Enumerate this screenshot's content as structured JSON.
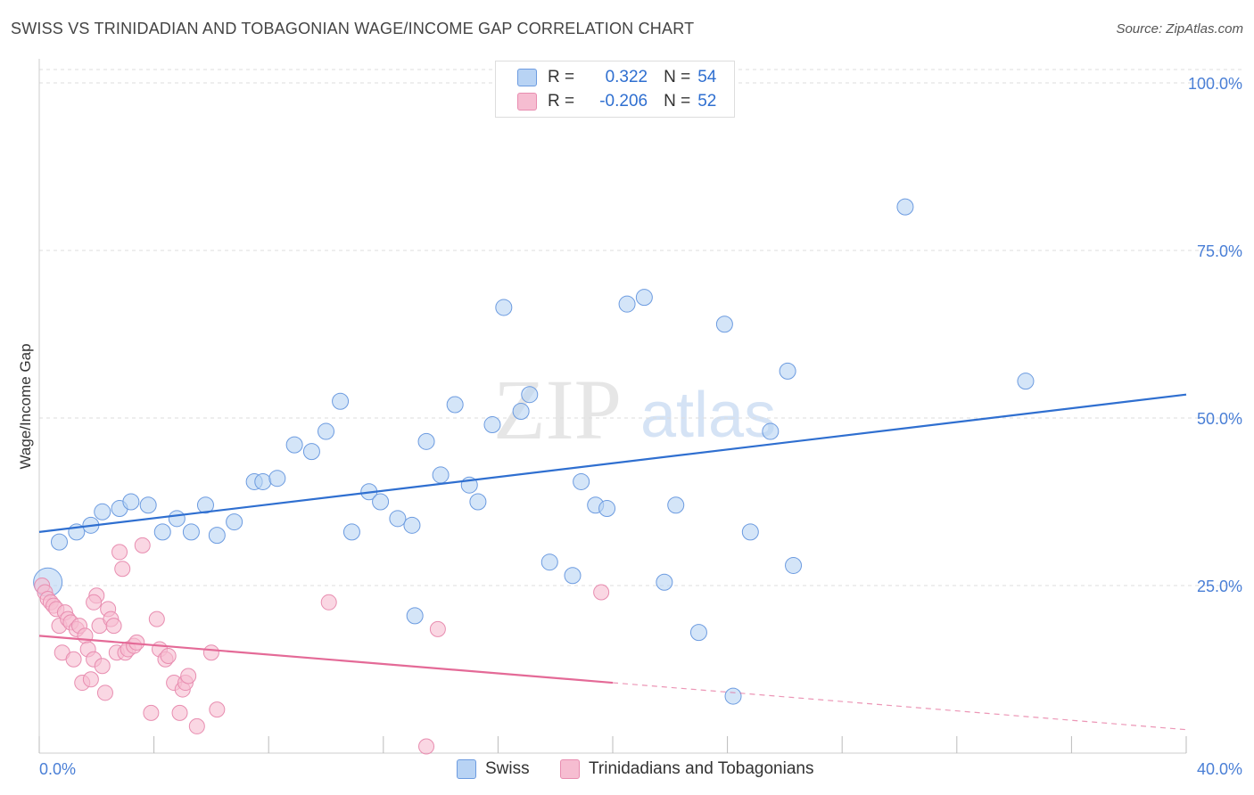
{
  "title": "SWISS VS TRINIDADIAN AND TOBAGONIAN WAGE/INCOME GAP CORRELATION CHART",
  "source": "Source: ZipAtlas.com",
  "watermark": {
    "part1": "ZIP",
    "part2": "atlas"
  },
  "colors": {
    "swiss": "#2f6fd0",
    "swiss_fill": "#b8d3f4",
    "trini": "#e46a97",
    "trini_fill": "#f6bdd1",
    "grid": "#dddddd",
    "tick_label": "#4a7fd6"
  },
  "legend_top": {
    "rows": [
      {
        "r_label": "R =",
        "r_value": "0.322",
        "n_label": "N =",
        "n_value": "54"
      },
      {
        "r_label": "R =",
        "r_value": "-0.206",
        "n_label": "N =",
        "n_value": "52"
      }
    ]
  },
  "bottom_legend": [
    "Swiss",
    "Trinidadians and Tobagonians"
  ],
  "chart_data": {
    "type": "scatter",
    "title": "SWISS VS TRINIDADIAN AND TOBAGONIAN WAGE/INCOME GAP CORRELATION CHART",
    "xlabel": "",
    "ylabel": "Wage/Income Gap",
    "xlim": [
      0,
      40
    ],
    "ylim": [
      0,
      100
    ],
    "x_tick_labels": [
      "0.0%",
      "40.0%"
    ],
    "y_tick_labels": [
      "100.0%",
      "75.0%",
      "50.0%",
      "25.0%"
    ],
    "y_ticks": [
      100,
      75,
      50,
      25
    ],
    "series": [
      {
        "name": "Swiss",
        "r": 0.322,
        "n": 54,
        "trend": {
          "x": [
            0,
            40
          ],
          "y": [
            33,
            53.5
          ],
          "style": "solid"
        },
        "points": [
          [
            0.3,
            25.5,
            "big"
          ],
          [
            0.7,
            31.5
          ],
          [
            1.3,
            33
          ],
          [
            1.8,
            34
          ],
          [
            2.2,
            36
          ],
          [
            2.8,
            36.5
          ],
          [
            3.2,
            37.5
          ],
          [
            3.8,
            37
          ],
          [
            4.3,
            33
          ],
          [
            4.8,
            35
          ],
          [
            5.3,
            33
          ],
          [
            5.8,
            37
          ],
          [
            6.2,
            32.5
          ],
          [
            6.8,
            34.5
          ],
          [
            7.5,
            40.5
          ],
          [
            7.8,
            40.5
          ],
          [
            8.3,
            41
          ],
          [
            8.9,
            46
          ],
          [
            9.5,
            45
          ],
          [
            10.0,
            48
          ],
          [
            10.5,
            52.5
          ],
          [
            10.9,
            33
          ],
          [
            11.5,
            39
          ],
          [
            11.9,
            37.5
          ],
          [
            12.5,
            35
          ],
          [
            13.0,
            34
          ],
          [
            13.1,
            20.5
          ],
          [
            13.5,
            46.5
          ],
          [
            14.0,
            41.5
          ],
          [
            14.5,
            52
          ],
          [
            15.0,
            40
          ],
          [
            15.3,
            37.5
          ],
          [
            15.8,
            49
          ],
          [
            16.2,
            66.5
          ],
          [
            16.8,
            51
          ],
          [
            17.1,
            53.5
          ],
          [
            17.8,
            28.5
          ],
          [
            18.6,
            26.5
          ],
          [
            18.9,
            40.5
          ],
          [
            19.4,
            37
          ],
          [
            19.8,
            36.5
          ],
          [
            20.5,
            67
          ],
          [
            21.1,
            68
          ],
          [
            21.8,
            25.5
          ],
          [
            22.2,
            37
          ],
          [
            23.0,
            18
          ],
          [
            23.9,
            64
          ],
          [
            24.2,
            8.5
          ],
          [
            24.8,
            33
          ],
          [
            25.5,
            48
          ],
          [
            26.1,
            57
          ],
          [
            26.3,
            28
          ],
          [
            30.2,
            81.5
          ],
          [
            34.4,
            55.5
          ]
        ]
      },
      {
        "name": "Trinidadians and Tobagonians",
        "r": -0.206,
        "n": 52,
        "trend": {
          "x": [
            0,
            20
          ],
          "y": [
            17.5,
            10.5
          ],
          "style": "solid",
          "dashed_extension": {
            "x": [
              20,
              40
            ],
            "y": [
              10.5,
              3.5
            ]
          }
        },
        "points": [
          [
            0.1,
            25
          ],
          [
            0.2,
            24
          ],
          [
            0.3,
            23
          ],
          [
            0.4,
            22.5
          ],
          [
            0.5,
            22
          ],
          [
            0.6,
            21.5
          ],
          [
            0.7,
            19
          ],
          [
            0.8,
            15
          ],
          [
            0.9,
            21
          ],
          [
            1.0,
            20
          ],
          [
            1.1,
            19.5
          ],
          [
            1.2,
            14
          ],
          [
            1.3,
            18.5
          ],
          [
            1.4,
            19
          ],
          [
            1.5,
            10.5
          ],
          [
            1.6,
            17.5
          ],
          [
            1.7,
            15.5
          ],
          [
            1.8,
            11
          ],
          [
            1.9,
            14
          ],
          [
            2.0,
            23.5
          ],
          [
            2.1,
            19
          ],
          [
            2.2,
            13
          ],
          [
            2.3,
            9
          ],
          [
            2.4,
            21.5
          ],
          [
            2.5,
            20
          ],
          [
            2.6,
            19
          ],
          [
            2.7,
            15
          ],
          [
            2.8,
            30
          ],
          [
            2.9,
            27.5
          ],
          [
            3.0,
            15
          ],
          [
            3.1,
            15.5
          ],
          [
            3.3,
            16
          ],
          [
            3.6,
            31
          ],
          [
            3.9,
            6
          ],
          [
            4.1,
            20
          ],
          [
            4.2,
            15.5
          ],
          [
            4.4,
            14
          ],
          [
            4.5,
            14.5
          ],
          [
            4.7,
            10.5
          ],
          [
            4.9,
            6
          ],
          [
            5.0,
            9.5
          ],
          [
            5.1,
            10.5
          ],
          [
            5.2,
            11.5
          ],
          [
            5.5,
            4
          ],
          [
            6.0,
            15
          ],
          [
            6.2,
            6.5
          ],
          [
            10.1,
            22.5
          ],
          [
            13.5,
            1
          ],
          [
            13.9,
            18.5
          ],
          [
            19.6,
            24
          ],
          [
            1.9,
            22.5
          ],
          [
            3.4,
            16.5
          ]
        ]
      }
    ]
  }
}
